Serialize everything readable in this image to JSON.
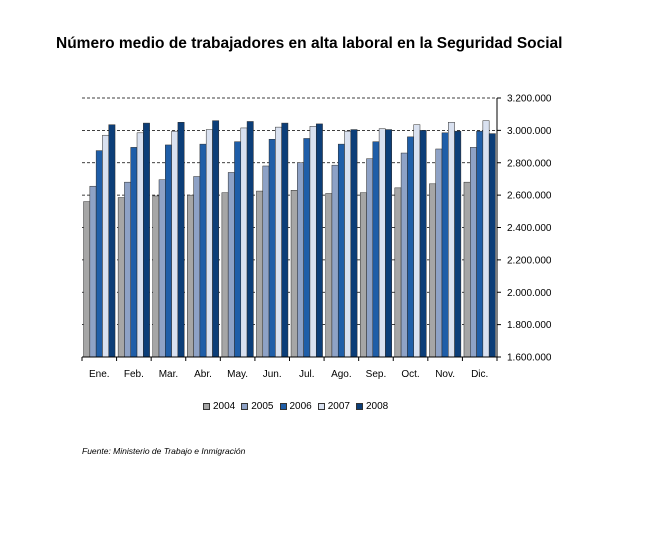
{
  "chart_data": {
    "type": "bar",
    "title": "Número medio de trabajadores en alta laboral en la Seguridad Social",
    "categories": [
      "Ene.",
      "Feb.",
      "Mar.",
      "Abr.",
      "May.",
      "Jun.",
      "Jul.",
      "Ago.",
      "Sep.",
      "Oct.",
      "Nov.",
      "Dic."
    ],
    "ylim": [
      1600000,
      3200000
    ],
    "yticks": [
      1600000,
      1800000,
      2000000,
      2200000,
      2400000,
      2600000,
      2800000,
      3000000,
      3200000
    ],
    "ytick_labels": [
      "1.600.000",
      "1.800.000",
      "2.000.000",
      "2.200.000",
      "2.400.000",
      "2.600.000",
      "2.800.000",
      "3.000.000",
      "3.200.000"
    ],
    "grid": "dashed horizontal",
    "legend_position": "bottom",
    "series": [
      {
        "name": "2004",
        "color": "#a6a6a6",
        "values": [
          2560000,
          2585000,
          2595000,
          2600000,
          2615000,
          2625000,
          2630000,
          2610000,
          2615000,
          2645000,
          2670000,
          2680000
        ]
      },
      {
        "name": "2005",
        "color": "#8ea2c6",
        "values": [
          2655000,
          2680000,
          2695000,
          2715000,
          2740000,
          2780000,
          2800000,
          2785000,
          2825000,
          2860000,
          2885000,
          2895000
        ]
      },
      {
        "name": "2006",
        "color": "#1f5ea8",
        "values": [
          2875000,
          2895000,
          2910000,
          2915000,
          2930000,
          2945000,
          2950000,
          2915000,
          2930000,
          2960000,
          2985000,
          2995000
        ]
      },
      {
        "name": "2007",
        "color": "#d9e1f0",
        "values": [
          2970000,
          2985000,
          2995000,
          3005000,
          3015000,
          3020000,
          3025000,
          2995000,
          3010000,
          3035000,
          3050000,
          3060000
        ]
      },
      {
        "name": "2008",
        "color": "#0c3e78",
        "values": [
          3035000,
          3045000,
          3050000,
          3060000,
          3055000,
          3045000,
          3040000,
          3005000,
          3005000,
          3000000,
          2995000,
          2980000
        ]
      }
    ]
  },
  "source_note": "Fuente: Ministerio de Trabajo e Inmigración"
}
